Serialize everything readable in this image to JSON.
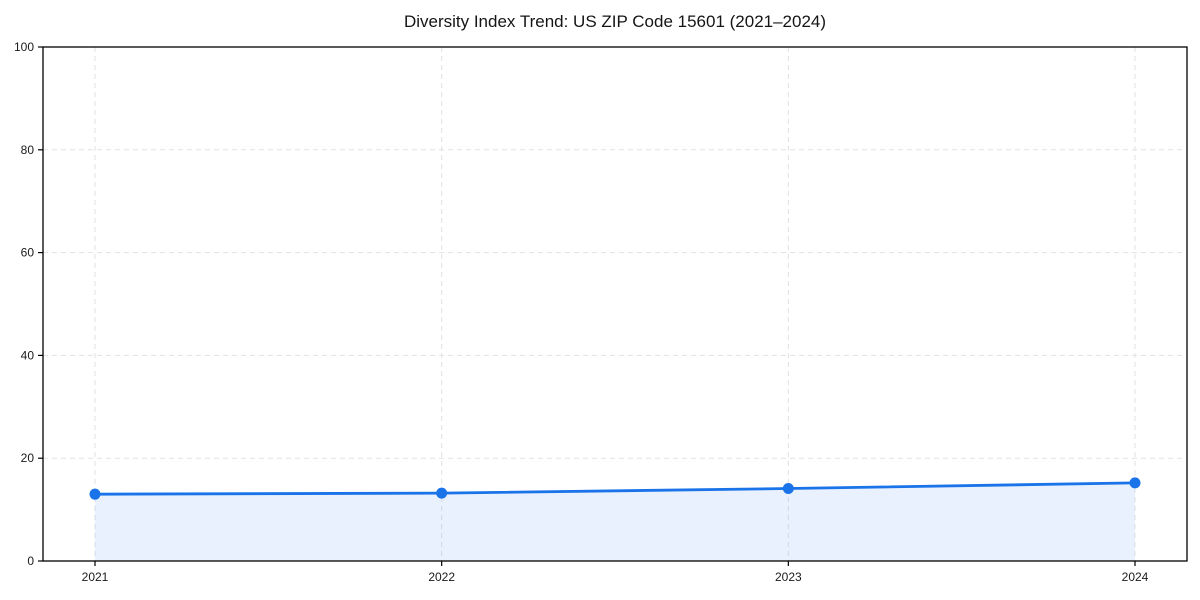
{
  "chart_data": {
    "type": "line",
    "title": "Diversity Index Trend: US ZIP Code 15601 (2021–2024)",
    "categories": [
      "2021",
      "2022",
      "2023",
      "2024"
    ],
    "series": [
      {
        "name": "Diversity Index",
        "values": [
          13.0,
          13.2,
          14.1,
          15.2
        ]
      }
    ],
    "xlabel": "",
    "ylabel": "",
    "ylim": [
      0,
      100
    ],
    "yticks": [
      0,
      20,
      40,
      60,
      80,
      100
    ],
    "grid": true,
    "grid_style": "dashed",
    "legend_position": "none",
    "marker": "circle",
    "line_color": "#1a73e8",
    "marker_color": "#1a73e8",
    "fill_color": "#1a73e8",
    "fill_opacity": 0.1,
    "grid_color": "#e2e2e2",
    "axis_color": "#000000",
    "tick_text_color": "#1a1a1a"
  }
}
